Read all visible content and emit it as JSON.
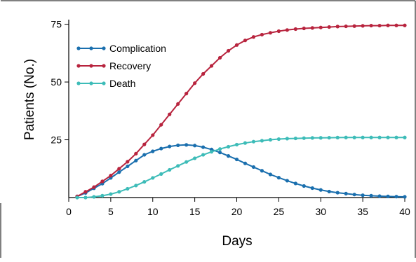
{
  "chart_data": {
    "type": "line",
    "xlabel": "Days",
    "ylabel": "Patients (No.)",
    "xlim": [
      0,
      40
    ],
    "ylim": [
      0,
      77
    ],
    "xticks": [
      0,
      5,
      10,
      15,
      20,
      25,
      30,
      35,
      40
    ],
    "yticks": [
      25,
      50,
      75
    ],
    "grid": false,
    "legend": {
      "position": "top-left"
    },
    "x": [
      1,
      2,
      3,
      4,
      5,
      6,
      7,
      8,
      9,
      10,
      11,
      12,
      13,
      14,
      15,
      16,
      17,
      18,
      19,
      20,
      21,
      22,
      23,
      24,
      25,
      26,
      27,
      28,
      29,
      30,
      31,
      32,
      33,
      34,
      35,
      36,
      37,
      38,
      39,
      40
    ],
    "series": [
      {
        "name": "Complication",
        "color": "#1a6fae",
        "values": [
          0.5,
          2,
          4,
          6,
          8.5,
          11,
          13.5,
          16,
          18.5,
          20,
          21.2,
          22.1,
          22.6,
          22.8,
          22.5,
          21.8,
          20.8,
          19.5,
          18.0,
          16.5,
          14.8,
          13.2,
          11.6,
          10.0,
          8.6,
          7.3,
          6.1,
          5.0,
          4.1,
          3.3,
          2.6,
          2.1,
          1.7,
          1.3,
          1.0,
          0.8,
          0.6,
          0.5,
          0.4,
          0.3
        ]
      },
      {
        "name": "Recovery",
        "color": "#b8243e",
        "values": [
          0.5,
          2.5,
          4.5,
          7,
          9.5,
          12.5,
          15.5,
          19,
          23,
          27,
          31.5,
          36,
          40.5,
          45,
          49.5,
          53.5,
          57,
          60.5,
          63.5,
          66,
          68,
          69.5,
          70.5,
          71.3,
          72,
          72.5,
          72.9,
          73.2,
          73.4,
          73.6,
          73.8,
          74,
          74.1,
          74.2,
          74.3,
          74.4,
          74.4,
          74.5,
          74.5,
          74.5
        ]
      },
      {
        "name": "Death",
        "color": "#3dbcb8",
        "values": [
          0,
          0,
          0.3,
          0.8,
          1.5,
          2.5,
          3.8,
          5.2,
          6.8,
          8.5,
          10.2,
          12,
          13.7,
          15.4,
          17,
          18.5,
          19.8,
          21,
          22,
          22.9,
          23.6,
          24.2,
          24.6,
          25,
          25.3,
          25.5,
          25.6,
          25.7,
          25.8,
          25.85,
          25.9,
          25.95,
          26,
          26,
          26,
          26,
          26,
          26,
          26,
          26
        ]
      }
    ]
  }
}
